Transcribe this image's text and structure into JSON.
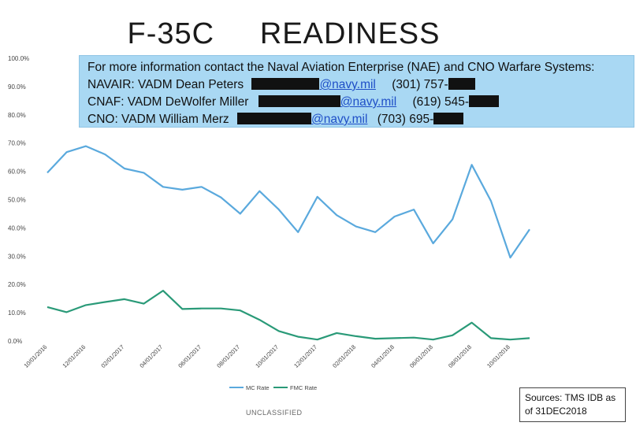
{
  "title": "F-35C     READINESS",
  "contact": {
    "intro": "For more information contact the Naval Aviation Enterprise (NAE) and  CNO Warfare Systems:",
    "lines": [
      {
        "label": "NAVAIR:  VADM Dean Peters",
        "email": "@navy.mil",
        "phone": "(301) 757-"
      },
      {
        "label": "CNAF:   VADM DeWolfer Miller",
        "email": "@navy.mil",
        "phone": "(619) 545-"
      },
      {
        "label": "CNO:  VADM William Merz",
        "email": "@navy.mil",
        "phone": "(703) 695-"
      }
    ]
  },
  "sources_line1": "Sources: TMS IDB  as",
  "sources_line2": "of 31DEC2018",
  "classification": "UNCLASSIFIED",
  "chart_data": {
    "type": "line",
    "title": "",
    "xlabel": "",
    "ylabel": "",
    "ylim": [
      0,
      100
    ],
    "y_ticks": [
      "0.0%",
      "10.0%",
      "20.0%",
      "30.0%",
      "40.0%",
      "50.0%",
      "60.0%",
      "70.0%",
      "80.0%",
      "90.0%",
      "100.0%"
    ],
    "x_tick_labels": [
      "10/01/2016",
      "12/01/2016",
      "02/01/2017",
      "04/01/2017",
      "06/01/2017",
      "08/01/2017",
      "10/01/2017",
      "12/01/2017",
      "02/01/2018",
      "04/01/2018",
      "06/01/2018",
      "08/01/2018",
      "10/01/2018"
    ],
    "legend_position": "bottom",
    "grid": false,
    "series": [
      {
        "name": "MC Rate",
        "color": "#5aa9dd",
        "values": [
          59.5,
          66.8,
          68.9,
          66.0,
          61.0,
          59.5,
          54.5,
          53.5,
          54.5,
          50.8,
          45.0,
          53.0,
          46.5,
          38.5,
          51.0,
          44.5,
          40.5,
          38.5,
          44.0,
          46.5,
          34.5,
          43.0,
          62.3,
          49.5,
          29.5,
          39.5
        ]
      },
      {
        "name": "FMC Rate",
        "color": "#2a9a78",
        "values": [
          12.0,
          10.2,
          12.7,
          13.8,
          14.8,
          13.2,
          17.8,
          11.3,
          11.5,
          11.5,
          10.8,
          7.5,
          3.5,
          1.5,
          0.5,
          2.8,
          1.7,
          0.8,
          1.0,
          1.2,
          0.5,
          2.0,
          6.5,
          1.0,
          0.5,
          1.0
        ]
      }
    ]
  }
}
